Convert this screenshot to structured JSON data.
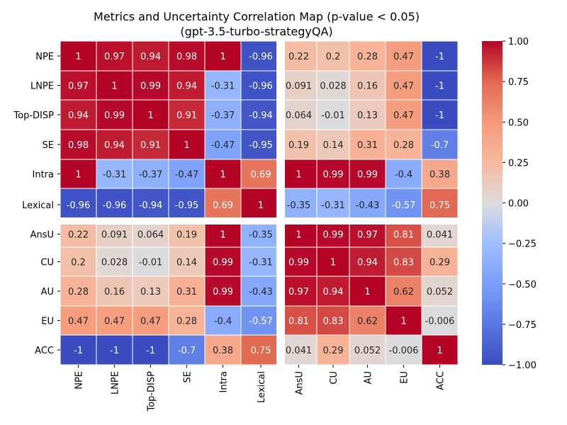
{
  "chart_data": {
    "type": "heatmap",
    "title": "Metrics and Uncertainty Correlation Map (p-value < 0.05)",
    "subtitle": "(gpt-3.5-turbo-strategyQA)",
    "xlabel": "",
    "ylabel": "",
    "grid": false,
    "labels": [
      "NPE",
      "LNPE",
      "Top-DISP",
      "SE",
      "Intra",
      "Lexical",
      "AnsU",
      "CU",
      "AU",
      "EU",
      "ACC"
    ],
    "values": [
      [
        1,
        0.97,
        0.94,
        0.98,
        1,
        -0.96,
        0.22,
        0.2,
        0.28,
        0.47,
        -1
      ],
      [
        0.97,
        1,
        0.99,
        0.94,
        -0.31,
        -0.96,
        0.091,
        0.028,
        0.16,
        0.47,
        -1
      ],
      [
        0.94,
        0.99,
        1,
        0.91,
        -0.37,
        -0.94,
        0.064,
        -0.01,
        0.13,
        0.47,
        -1
      ],
      [
        0.98,
        0.94,
        0.91,
        1,
        -0.47,
        -0.95,
        0.19,
        0.14,
        0.31,
        0.28,
        -0.7
      ],
      [
        1,
        -0.31,
        -0.37,
        -0.47,
        1,
        0.69,
        1,
        0.99,
        0.99,
        -0.4,
        0.38
      ],
      [
        -0.96,
        -0.96,
        -0.94,
        -0.95,
        0.69,
        1,
        -0.35,
        -0.31,
        -0.43,
        -0.57,
        0.75
      ],
      [
        0.22,
        0.091,
        0.064,
        0.19,
        1,
        -0.35,
        1,
        0.99,
        0.97,
        0.81,
        0.041
      ],
      [
        0.2,
        0.028,
        -0.01,
        0.14,
        0.99,
        -0.31,
        0.99,
        1,
        0.94,
        0.83,
        0.29
      ],
      [
        0.28,
        0.16,
        0.13,
        0.31,
        0.99,
        -0.43,
        0.97,
        0.94,
        1,
        0.62,
        0.052
      ],
      [
        0.47,
        0.47,
        0.47,
        0.28,
        -0.4,
        -0.57,
        0.81,
        0.83,
        0.62,
        1,
        -0.006
      ],
      [
        -1,
        -1,
        -1,
        -0.7,
        0.38,
        0.75,
        0.041,
        0.29,
        0.052,
        -0.006,
        1
      ]
    ],
    "separator_after_row": 6,
    "separator_after_col": 6,
    "colormap": "coolwarm",
    "vmin": -1,
    "vmax": 1,
    "colorbar_ticks": [
      "1.00",
      "0.75",
      "0.50",
      "0.25",
      "0.00",
      "−0.25",
      "−0.50",
      "−0.75",
      "−1.00"
    ],
    "colorbar_tick_values": [
      1,
      0.75,
      0.5,
      0.25,
      0,
      -0.25,
      -0.5,
      -0.75,
      -1
    ]
  }
}
